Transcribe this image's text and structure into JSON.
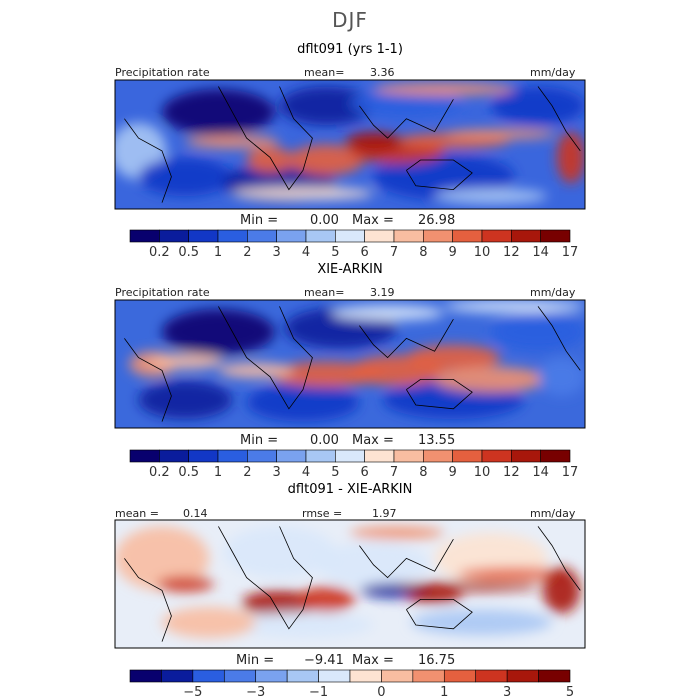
{
  "figure": {
    "title": "DJF"
  },
  "chart_data": [
    {
      "type": "heatmap",
      "title": "dflt091 (yrs 1-1)",
      "top_left_label": "Precipitation rate",
      "stat_label": "mean=",
      "stat_value": "3.36",
      "units": "mm/day",
      "min_label": "Min =",
      "min_value": "0.00",
      "max_label": "Max =",
      "max_value": "26.98",
      "colorbar": {
        "colors": [
          "#08006e",
          "#0a1c9c",
          "#1237c6",
          "#2a5ee0",
          "#4b7be8",
          "#7aa2ef",
          "#a8c7f4",
          "#d9e8fb",
          "#fde3d2",
          "#f8bda1",
          "#f19170",
          "#e5603f",
          "#cd3420",
          "#a8170b",
          "#780000"
        ],
        "tick_labels": [
          "0.2",
          "0.5",
          "1",
          "2",
          "3",
          "4",
          "5",
          "6",
          "7",
          "8",
          "9",
          "10",
          "12",
          "14",
          "17"
        ]
      }
    },
    {
      "type": "heatmap",
      "title": "XIE-ARKIN",
      "top_left_label": "Precipitation rate",
      "stat_label": "mean=",
      "stat_value": "3.19",
      "units": "mm/day",
      "min_label": "Min =",
      "min_value": "0.00",
      "max_label": "Max =",
      "max_value": "13.55",
      "colorbar": {
        "colors": [
          "#08006e",
          "#0a1c9c",
          "#1237c6",
          "#2a5ee0",
          "#4b7be8",
          "#7aa2ef",
          "#a8c7f4",
          "#d9e8fb",
          "#fde3d2",
          "#f8bda1",
          "#f19170",
          "#e5603f",
          "#cd3420",
          "#a8170b",
          "#780000"
        ],
        "tick_labels": [
          "0.2",
          "0.5",
          "1",
          "2",
          "3",
          "4",
          "5",
          "6",
          "7",
          "8",
          "9",
          "10",
          "12",
          "14",
          "17"
        ]
      }
    },
    {
      "type": "heatmap",
      "title": "dflt091 - XIE-ARKIN",
      "top_left_label": "mean =",
      "top_left_value": "0.14",
      "stat_label": "rmse =",
      "stat_value": "1.97",
      "units": "mm/day",
      "min_label": "Min =",
      "min_value": "−9.41",
      "max_label": "Max =",
      "max_value": "16.75",
      "colorbar": {
        "colors": [
          "#08006e",
          "#0a1c9c",
          "#2a5ee0",
          "#4b7be8",
          "#7aa2ef",
          "#a8c7f4",
          "#d9e8fb",
          "#fde3d2",
          "#f8bda1",
          "#f19170",
          "#e5603f",
          "#cd3420",
          "#a8170b",
          "#780000"
        ],
        "tick_labels": [
          "−5",
          "−3",
          "−1",
          "0",
          "1",
          "3",
          "5"
        ]
      }
    }
  ]
}
